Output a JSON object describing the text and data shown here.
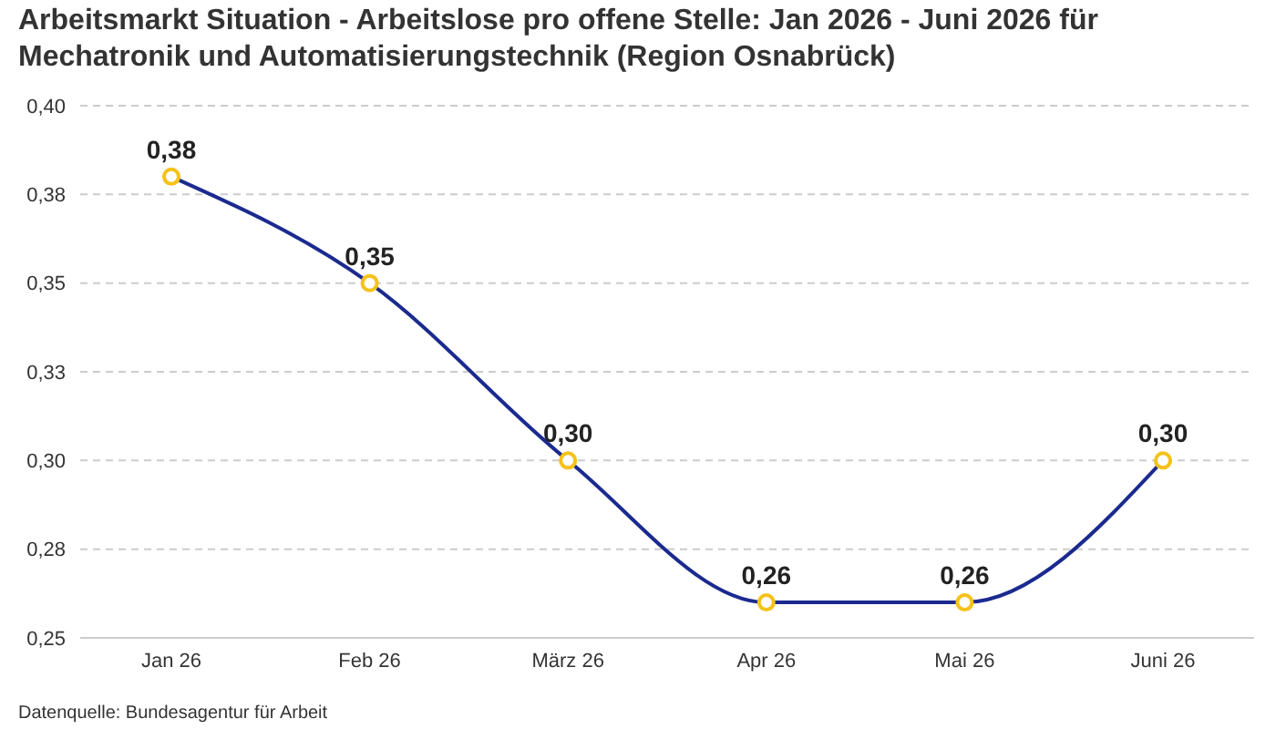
{
  "chart_data": {
    "type": "line",
    "title": "Arbeitsmarkt Situation - Arbeitslose pro offene Stelle: Jan 2026 - Juni 2026 für Mechatronik und Automatisierungstechnik (Region Osnabrück)",
    "categories": [
      "Jan 26",
      "Feb 26",
      "März 26",
      "Apr 26",
      "Mai 26",
      "Juni 26"
    ],
    "series": [
      {
        "color": "#1b2a8f",
        "values": [
          0.38,
          0.35,
          0.3,
          0.26,
          0.26,
          0.3
        ],
        "value_labels": [
          "0,38",
          "0,35",
          "0,30",
          "0,26",
          "0,26",
          "0,30"
        ]
      }
    ],
    "ylim": [
      0.25,
      0.4
    ],
    "yticks": [
      {
        "value": 0.25,
        "label": "0,25"
      },
      {
        "value": 0.275,
        "label": "0,28"
      },
      {
        "value": 0.3,
        "label": "0,30"
      },
      {
        "value": 0.325,
        "label": "0,33"
      },
      {
        "value": 0.35,
        "label": "0,35"
      },
      {
        "value": 0.375,
        "label": "0,38"
      },
      {
        "value": 0.4,
        "label": "0,40"
      }
    ],
    "grid": "y",
    "marker": "circle",
    "line_style": "solid",
    "legend": false,
    "annotations": [
      "Datenquelle: Bundesagentur für Arbeit"
    ]
  }
}
